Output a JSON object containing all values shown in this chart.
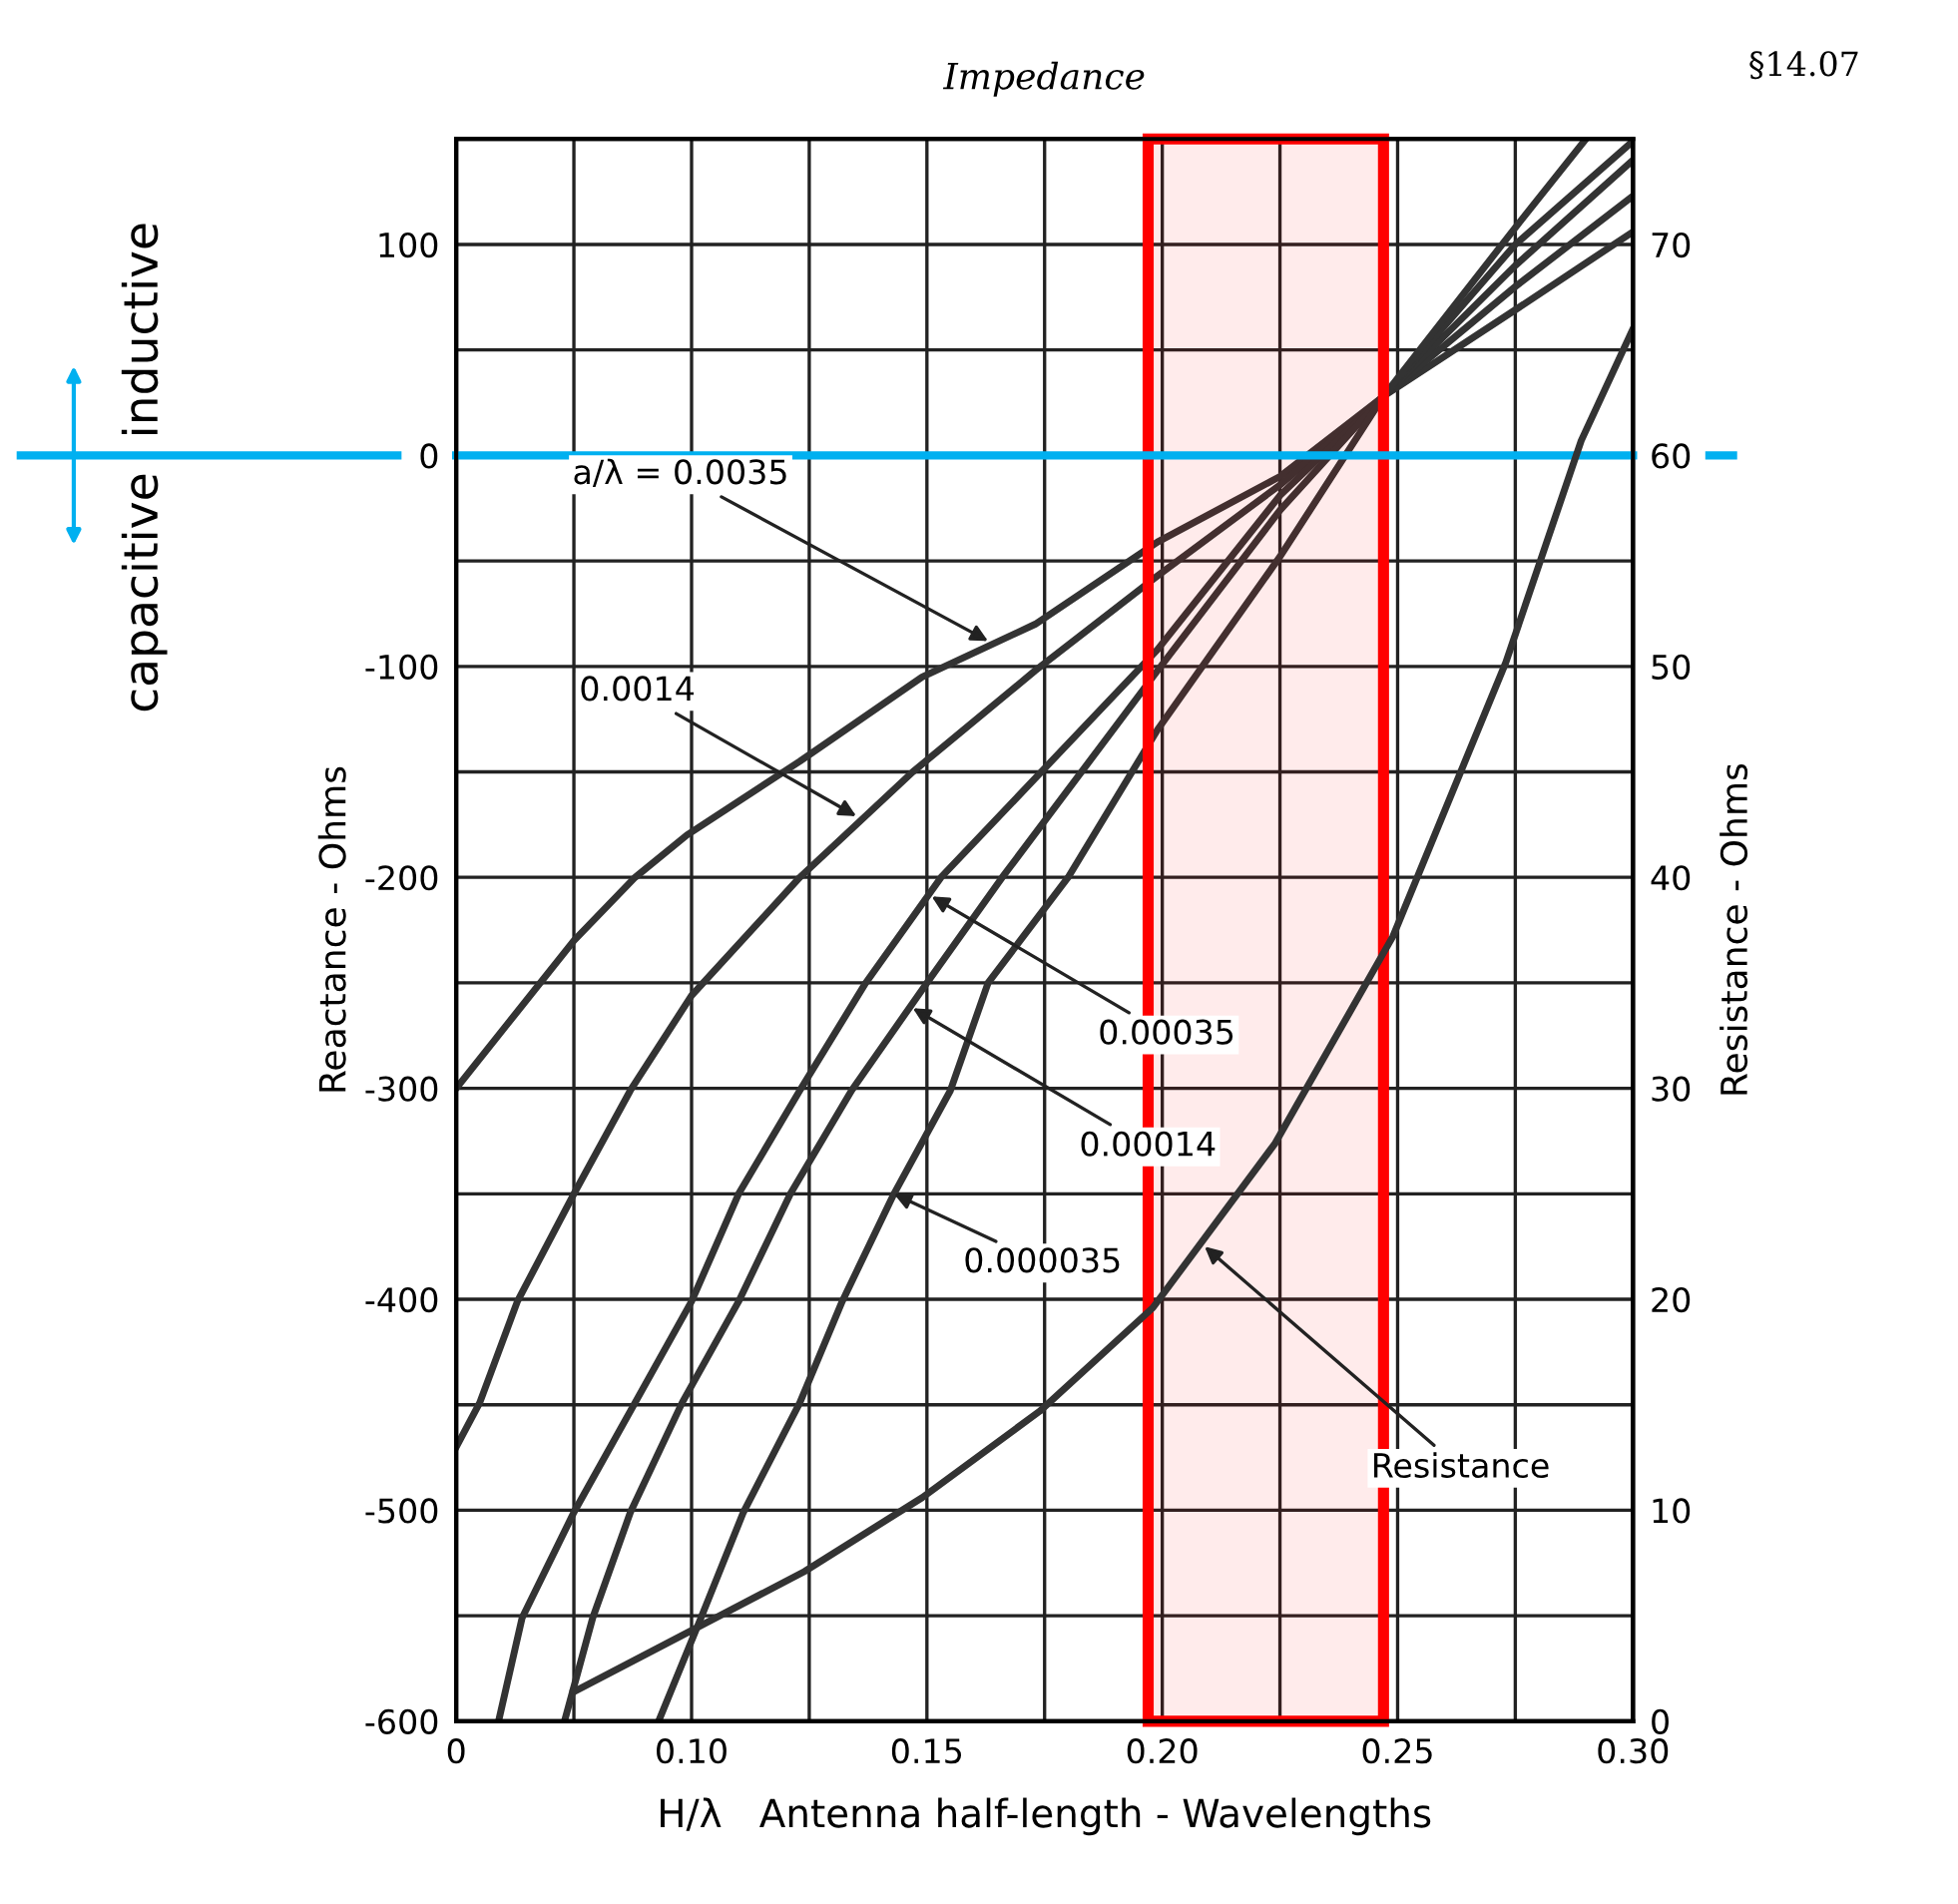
{
  "chart_data": {
    "type": "line",
    "title": "Impedance",
    "xlabel": "H/λ   Antenna half-length - Wavelengths",
    "ylabel": "Reactance - Ohms",
    "y2label": "Resistance - Ohms",
    "xlim": [
      0.05,
      0.3
    ],
    "xticks": [
      {
        "value": 0.05,
        "label": "0"
      },
      {
        "value": 0.075,
        "label": null
      },
      {
        "value": 0.1,
        "label": "0.10"
      },
      {
        "value": 0.125,
        "label": null
      },
      0.15,
      {
        "value": 0.175,
        "label": null
      },
      {
        "value": 0.2,
        "label": "0.20"
      },
      {
        "value": 0.225,
        "label": null
      },
      0.25,
      {
        "value": 0.275,
        "label": null
      },
      {
        "value": 0.3,
        "label": "0.30"
      }
    ],
    "ylim": [
      -600,
      150
    ],
    "yticks": [
      -600,
      {
        "value": -550,
        "label": null
      },
      -500,
      {
        "value": -450,
        "label": null
      },
      -400,
      {
        "value": -350,
        "label": null
      },
      -300,
      {
        "value": -250,
        "label": null
      },
      -200,
      {
        "value": -150,
        "label": null
      },
      -100,
      {
        "value": -50,
        "label": null
      },
      0,
      {
        "value": 50,
        "label": null
      },
      100
    ],
    "y2lim": [
      0,
      75
    ],
    "y2ticks": [
      0,
      10,
      20,
      30,
      40,
      50,
      60,
      70
    ],
    "grid": true,
    "series": [
      {
        "color": "#333333",
        "x": [
          0.05,
          0.075,
          0.088,
          0.099,
          0.123,
          0.149,
          0.173,
          0.199,
          0.225,
          0.247,
          0.275,
          0.3
        ],
        "values": [
          -300,
          -230,
          -200,
          -180,
          -145,
          -105,
          -80,
          -41,
          -10,
          28,
          69,
          106
        ]
      },
      {
        "color": "#333333",
        "x": [
          0.05,
          0.055,
          0.063,
          0.075,
          0.087,
          0.1,
          0.123,
          0.147,
          0.173,
          0.199,
          0.225,
          0.247,
          0.275,
          0.3
        ],
        "values": [
          -470,
          -449,
          -401,
          -350,
          -301,
          -256,
          -200,
          -150,
          -102,
          -57,
          -14,
          28,
          80,
          123
        ]
      },
      {
        "color": "#333333",
        "x": [
          0.059,
          0.064,
          0.075,
          0.088,
          0.1,
          0.11,
          0.123,
          0.137,
          0.153,
          0.199,
          0.225,
          0.247,
          0.275,
          0.3
        ],
        "values": [
          -600,
          -551,
          -501,
          -449,
          -401,
          -350,
          -301,
          -250,
          -200,
          -92,
          -19,
          28,
          90,
          140
        ]
      },
      {
        "color": "#333333",
        "x": [
          0.073,
          0.079,
          0.087,
          0.098,
          0.11,
          0.121,
          0.134,
          0.15,
          0.166,
          0.199,
          0.225,
          0.247,
          0.275,
          0.3
        ],
        "values": [
          -600,
          -551,
          -501,
          -449,
          -401,
          -350,
          -301,
          -250,
          -200,
          -102,
          -26,
          28,
          100,
          149
        ]
      },
      {
        "color": "#333333",
        "x": [
          0.093,
          0.102,
          0.111,
          0.123,
          0.132,
          0.143,
          0.155,
          0.163,
          0.18,
          0.199,
          0.225,
          0.247,
          0.275,
          0.29
        ],
        "values": [
          -600,
          -551,
          -501,
          -449,
          -401,
          -350,
          -301,
          -250,
          -200,
          -130,
          -48,
          28,
          108,
          150
        ]
      },
      {
        "color": "#333333",
        "axis": "y2",
        "x": [
          0.075,
          0.1,
          0.124,
          0.149,
          0.174,
          0.198,
          0.224,
          0.249,
          0.273,
          0.289,
          0.3
        ],
        "values": [
          1.4,
          4.3,
          7.1,
          10.6,
          14.7,
          19.6,
          27.4,
          37.2,
          50.2,
          60.7,
          66
        ]
      }
    ],
    "annotations": [
      {
        "text": "a/λ = 0.0035",
        "x": 0.163,
        "y": -88
      },
      {
        "text": "0.0014",
        "x": 0.135,
        "y": -171
      },
      {
        "text": "0.00035",
        "x": 0.151,
        "y": -209
      },
      {
        "text": "0.00014",
        "x": 0.147,
        "y": -262
      },
      {
        "text": "0.000035",
        "x": 0.143,
        "y": -350
      },
      {
        "text": "Resistance",
        "x": 0.209,
        "y": -375
      },
      "§14.07",
      "inductive",
      "capacitive"
    ],
    "ref_lines": [
      {
        "axis": "y",
        "value": 0,
        "color": "#00b0f0"
      }
    ],
    "bands": [
      {
        "axis": "x",
        "from": 0.197,
        "to": 0.247,
        "color": "#ff0000"
      }
    ]
  }
}
